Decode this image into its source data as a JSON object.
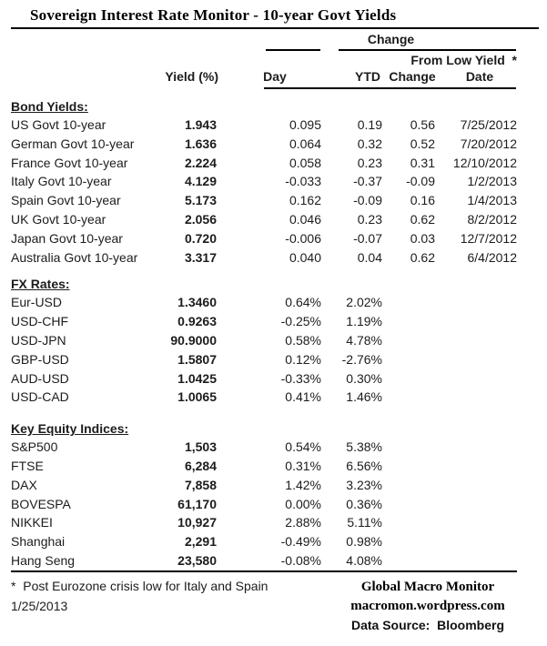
{
  "title": "Sovereign Interest Rate Monitor - 10-year Govt Yields",
  "header": {
    "change_group": "Change",
    "from_low_yield": "From Low Yield  *",
    "columns": {
      "yield_pct": "Yield (%)",
      "day": "Day",
      "ytd": "YTD",
      "change": "Change",
      "date": "Date"
    }
  },
  "sections": [
    {
      "name": "Bond Yields:",
      "rows": [
        {
          "label": "US Govt 10-year",
          "yield": "1.943",
          "day": "0.095",
          "ytd": "0.19",
          "chg": "0.56",
          "date": "7/25/2012"
        },
        {
          "label": "German Govt 10-year",
          "yield": "1.636",
          "day": "0.064",
          "ytd": "0.32",
          "chg": "0.52",
          "date": "7/20/2012"
        },
        {
          "label": "France Govt 10-year",
          "yield": "2.224",
          "day": "0.058",
          "ytd": "0.23",
          "chg": "0.31",
          "date": "12/10/2012"
        },
        {
          "label": "Italy Govt 10-year",
          "yield": "4.129",
          "day": "-0.033",
          "ytd": "-0.37",
          "chg": "-0.09",
          "date": "1/2/2013"
        },
        {
          "label": "Spain Govt 10-year",
          "yield": "5.173",
          "day": "0.162",
          "ytd": "-0.09",
          "chg": "0.16",
          "date": "1/4/2013"
        },
        {
          "label": "UK Govt 10-year",
          "yield": "2.056",
          "day": "0.046",
          "ytd": "0.23",
          "chg": "0.62",
          "date": "8/2/2012"
        },
        {
          "label": "Japan Govt 10-year",
          "yield": "0.720",
          "day": "-0.006",
          "ytd": "-0.07",
          "chg": "0.03",
          "date": "12/7/2012"
        },
        {
          "label": "Australia Govt 10-year",
          "yield": "3.317",
          "day": "0.040",
          "ytd": "0.04",
          "chg": "0.62",
          "date": "6/4/2012"
        }
      ]
    },
    {
      "name": "FX Rates:",
      "rows": [
        {
          "label": "Eur-USD",
          "yield": "1.3460",
          "day": "0.64%",
          "ytd": "2.02%"
        },
        {
          "label": "USD-CHF",
          "yield": "0.9263",
          "day": "-0.25%",
          "ytd": "1.19%"
        },
        {
          "label": "USD-JPN",
          "yield": "90.9000",
          "day": "0.58%",
          "ytd": "4.78%"
        },
        {
          "label": "GBP-USD",
          "yield": "1.5807",
          "day": "0.12%",
          "ytd": "-2.76%"
        },
        {
          "label": "AUD-USD",
          "yield": "1.0425",
          "day": "-0.33%",
          "ytd": "0.30%"
        },
        {
          "label": "USD-CAD",
          "yield": "1.0065",
          "day": "0.41%",
          "ytd": "1.46%"
        }
      ]
    },
    {
      "name": "Key Equity Indices:",
      "rows": [
        {
          "label": "S&P500",
          "yield": "1,503",
          "day": "0.54%",
          "ytd": "5.38%"
        },
        {
          "label": "FTSE",
          "yield": "6,284",
          "day": "0.31%",
          "ytd": "6.56%"
        },
        {
          "label": "DAX",
          "yield": "7,858",
          "day": "1.42%",
          "ytd": "3.23%"
        },
        {
          "label": "BOVESPA",
          "yield": "61,170",
          "day": "0.00%",
          "ytd": "0.36%"
        },
        {
          "label": "NIKKEI",
          "yield": "10,927",
          "day": "2.88%",
          "ytd": "5.11%"
        },
        {
          "label": "Shanghai",
          "yield": "2,291",
          "day": "-0.49%",
          "ytd": "0.98%"
        },
        {
          "label": "Hang Seng",
          "yield": "23,580",
          "day": "-0.08%",
          "ytd": "4.08%"
        }
      ]
    }
  ],
  "footer": {
    "note": "*  Post Eurozone crisis low for Italy and Spain",
    "date": "1/25/2013",
    "brand": "Global Macro Monitor",
    "url": "macromon.wordpress.com",
    "source": "Data Source:  Bloomberg"
  }
}
